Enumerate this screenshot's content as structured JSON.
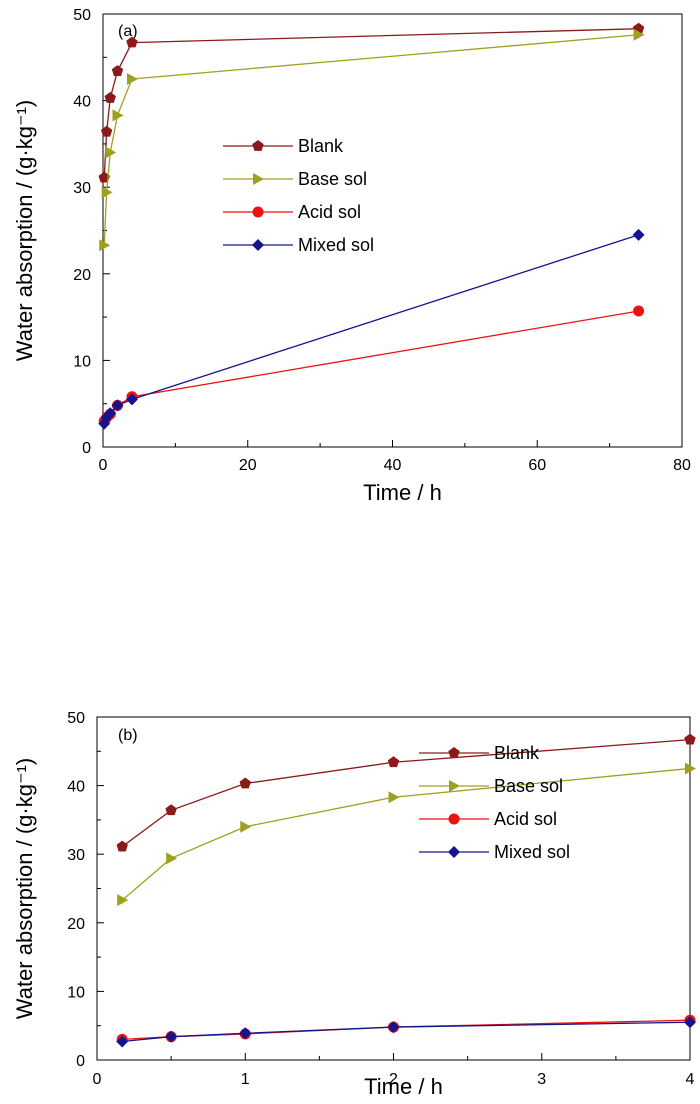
{
  "colors": {
    "blank": "#8b1a1a",
    "base": "#a0a020",
    "acid": "#ee1111",
    "mixed": "#14148c",
    "axis": "#000000"
  },
  "chart_data": [
    {
      "type": "line",
      "panel_label": "(a)",
      "xlabel": "Time / h",
      "ylabel": "Water absorption / (g·kg⁻¹)",
      "xlim": [
        0,
        80
      ],
      "ylim": [
        0,
        50
      ],
      "xticks": [
        0,
        20,
        40,
        60,
        80
      ],
      "yticks": [
        0,
        10,
        20,
        30,
        40,
        50
      ],
      "grid": false,
      "legend_position": "center",
      "series": [
        {
          "name": "Blank",
          "marker": "pentagon",
          "color_key": "blank",
          "x": [
            0.17,
            0.5,
            1,
            2,
            4,
            74
          ],
          "y": [
            31.1,
            36.4,
            40.3,
            43.4,
            46.7,
            48.3
          ]
        },
        {
          "name": "Base sol",
          "marker": "triangle-right",
          "color_key": "base",
          "x": [
            0.17,
            0.5,
            1,
            2,
            4,
            74
          ],
          "y": [
            23.3,
            29.4,
            34.0,
            38.3,
            42.5,
            47.6
          ]
        },
        {
          "name": "Acid sol",
          "marker": "circle",
          "color_key": "acid",
          "x": [
            0.17,
            0.5,
            1,
            2,
            4,
            74
          ],
          "y": [
            3.0,
            3.4,
            3.8,
            4.8,
            5.8,
            15.7
          ]
        },
        {
          "name": "Mixed sol",
          "marker": "diamond",
          "color_key": "mixed",
          "x": [
            0.17,
            0.5,
            1,
            2,
            4,
            74
          ],
          "y": [
            2.7,
            3.4,
            3.9,
            4.8,
            5.5,
            24.5
          ]
        }
      ]
    },
    {
      "type": "line",
      "panel_label": "(b)",
      "xlabel": "Time / h",
      "ylabel": "Water absorption / (g·kg⁻¹)",
      "xlim": [
        0,
        4
      ],
      "ylim": [
        0,
        50
      ],
      "xticks": [
        0,
        1,
        2,
        3,
        4
      ],
      "yticks": [
        0,
        10,
        20,
        30,
        40,
        50
      ],
      "grid": false,
      "legend_position": "center-right",
      "series": [
        {
          "name": "Blank",
          "marker": "pentagon",
          "color_key": "blank",
          "x": [
            0.17,
            0.5,
            1,
            2,
            4
          ],
          "y": [
            31.1,
            36.4,
            40.3,
            43.4,
            46.7
          ]
        },
        {
          "name": "Base sol",
          "marker": "triangle-right",
          "color_key": "base",
          "x": [
            0.17,
            0.5,
            1,
            2,
            4
          ],
          "y": [
            23.3,
            29.4,
            34.0,
            38.3,
            42.5
          ]
        },
        {
          "name": "Acid sol",
          "marker": "circle",
          "color_key": "acid",
          "x": [
            0.17,
            0.5,
            1,
            2,
            4
          ],
          "y": [
            3.0,
            3.4,
            3.8,
            4.8,
            5.8
          ]
        },
        {
          "name": "Mixed sol",
          "marker": "diamond",
          "color_key": "mixed",
          "x": [
            0.17,
            0.5,
            1,
            2,
            4
          ],
          "y": [
            2.7,
            3.4,
            3.9,
            4.8,
            5.5
          ]
        }
      ]
    }
  ]
}
